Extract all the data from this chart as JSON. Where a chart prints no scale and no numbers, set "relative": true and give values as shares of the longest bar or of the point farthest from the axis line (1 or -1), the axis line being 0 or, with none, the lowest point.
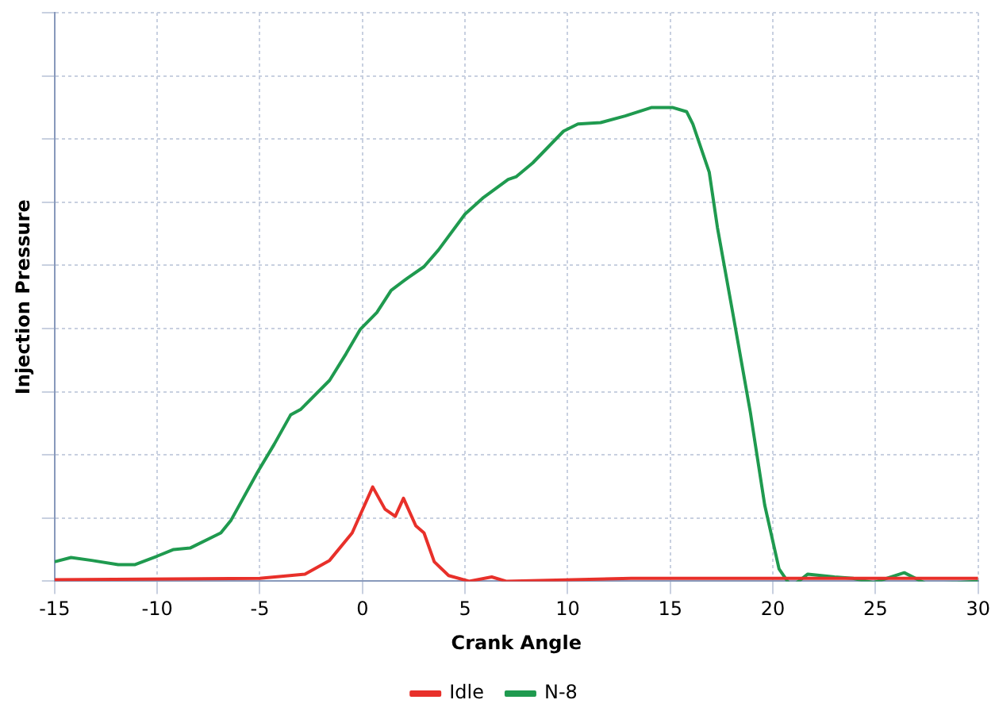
{
  "chart_data": {
    "type": "line",
    "xlabel": "Crank Angle",
    "ylabel": "Injection Pressure",
    "relative": true,
    "xlim": [
      -15,
      30
    ],
    "xticks": [
      -15,
      -10,
      -5,
      0,
      5,
      10,
      15,
      20,
      25,
      30
    ],
    "grid": true,
    "legend": "bottom",
    "marker": "none",
    "line_style": "solid",
    "series": [
      {
        "name": "Idle",
        "color": "#e8302a",
        "x": [
          -15,
          -5,
          -2.8,
          -1.6,
          -0.5,
          0.5,
          1.1,
          1.6,
          2.0,
          2.6,
          3.0,
          3.5,
          4.2,
          5.2,
          6.3,
          7.0,
          13.1,
          30
        ],
        "values": [
          0.003,
          0.006,
          0.015,
          0.044,
          0.102,
          0.199,
          0.152,
          0.137,
          0.175,
          0.117,
          0.102,
          0.041,
          0.012,
          0,
          0.009,
          0,
          0.006,
          0.006
        ]
      },
      {
        "name": "N-8",
        "color": "#1f9a4f",
        "x": [
          -15,
          -14.2,
          -13.2,
          -11.9,
          -11.1,
          -10.0,
          -9.2,
          -8.4,
          -6.9,
          -6.4,
          -5.1,
          -4.3,
          -3.5,
          -3.0,
          -1.6,
          -0.8,
          -0.1,
          0.7,
          1.4,
          2.2,
          3.0,
          3.7,
          5.0,
          5.9,
          7.1,
          7.5,
          8.3,
          9.8,
          10.5,
          11.6,
          12.8,
          14.1,
          15.1,
          15.8,
          16.1,
          16.9,
          17.3,
          18.1,
          18.9,
          19.6,
          20.3,
          20.9,
          21.7,
          23.0,
          23.9,
          24.9,
          26.4,
          27.5,
          29.0,
          30.0
        ],
        "values": [
          0.041,
          0.05,
          0.044,
          0.035,
          0.035,
          0.053,
          0.067,
          0.07,
          0.102,
          0.129,
          0.231,
          0.289,
          0.351,
          0.363,
          0.424,
          0.48,
          0.532,
          0.567,
          0.614,
          0.64,
          0.664,
          0.699,
          0.775,
          0.81,
          0.848,
          0.854,
          0.883,
          0.95,
          0.965,
          0.968,
          0.982,
          1,
          1,
          0.991,
          0.965,
          0.863,
          0.746,
          0.553,
          0.357,
          0.161,
          0.026,
          -0.012,
          0.015,
          0.009,
          0.006,
          -0.003,
          0.018,
          -0.006,
          -0.003,
          0
        ]
      }
    ]
  }
}
